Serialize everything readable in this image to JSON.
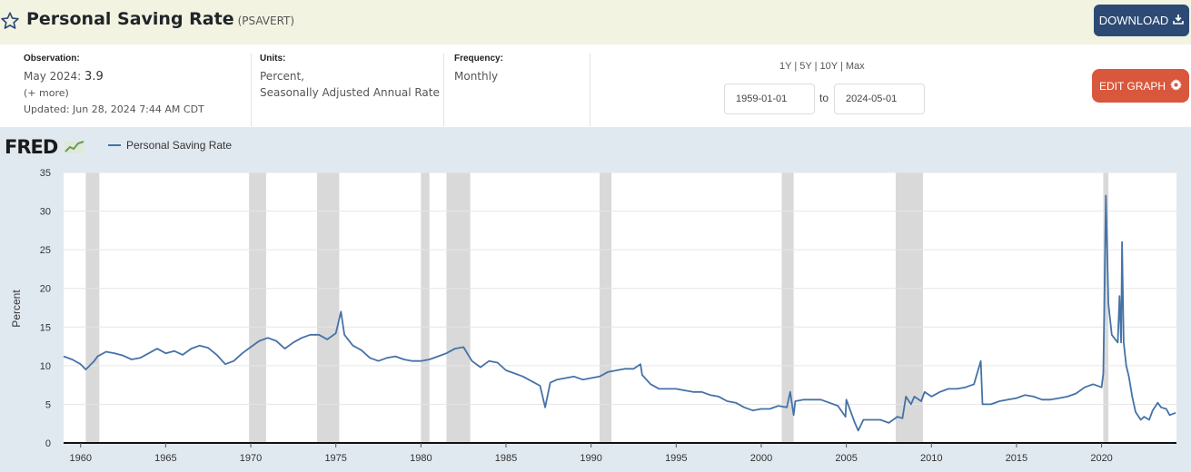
{
  "header": {
    "title": "Personal Saving Rate",
    "series_code": "(PSAVERT)",
    "star_icon": "star-outline-icon",
    "download_label": "DOWNLOAD",
    "download_icon": "download-icon"
  },
  "meta": {
    "observation_label": "Observation:",
    "observation_period": "May 2024:",
    "observation_value": "3.9",
    "more_label": "(+ more)",
    "updated": "Updated: Jun 28, 2024 7:44 AM CDT",
    "units_label": "Units:",
    "units_line1": "Percent,",
    "units_line2": "Seasonally Adjusted Annual Rate",
    "frequency_label": "Frequency:",
    "frequency_value": "Monthly"
  },
  "range": {
    "r1y": "1Y",
    "r5y": "5Y",
    "r10y": "10Y",
    "rmax": "Max",
    "sep": "|",
    "start_date": "1959-01-01",
    "to_label": "to",
    "end_date": "2024-05-01"
  },
  "edit_graph": {
    "label": "EDIT GRAPH",
    "icon": "gear-icon"
  },
  "colors": {
    "line": "#4572a7",
    "recession": "#d9d9d9",
    "plot_bg": "#ffffff",
    "chart_bg": "#e1e9f0"
  },
  "chart_data": {
    "type": "line",
    "logo": "FRED",
    "ylabel": "Percent",
    "xlabel": "",
    "ylim": [
      0,
      35
    ],
    "xlim": [
      1959.0,
      2024.4
    ],
    "yticks": [
      0,
      5,
      10,
      15,
      20,
      25,
      30,
      35
    ],
    "xticks": [
      1960,
      1965,
      1970,
      1975,
      1980,
      1985,
      1990,
      1995,
      2000,
      2005,
      2010,
      2015,
      2020
    ],
    "grid": true,
    "legend_position": "top-left",
    "series": [
      {
        "name": "Personal Saving Rate",
        "x": [
          1959.0,
          1959.5,
          1960.0,
          1960.3,
          1960.8,
          1961.0,
          1961.5,
          1962.0,
          1962.5,
          1963.0,
          1963.5,
          1964.0,
          1964.5,
          1965.0,
          1965.5,
          1966.0,
          1966.5,
          1967.0,
          1967.5,
          1968.0,
          1968.5,
          1969.0,
          1969.5,
          1970.0,
          1970.5,
          1971.0,
          1971.5,
          1972.0,
          1972.5,
          1973.0,
          1973.5,
          1974.0,
          1974.5,
          1975.0,
          1975.3,
          1975.5,
          1976.0,
          1976.5,
          1977.0,
          1977.5,
          1978.0,
          1978.5,
          1979.0,
          1979.5,
          1980.0,
          1980.5,
          1981.0,
          1981.5,
          1982.0,
          1982.5,
          1983.0,
          1983.5,
          1984.0,
          1984.5,
          1985.0,
          1985.5,
          1986.0,
          1986.5,
          1987.0,
          1987.3,
          1987.6,
          1988.0,
          1988.5,
          1989.0,
          1989.5,
          1990.0,
          1990.5,
          1991.0,
          1991.5,
          1992.0,
          1992.5,
          1992.9,
          1993.0,
          1993.5,
          1994.0,
          1994.5,
          1995.0,
          1995.5,
          1996.0,
          1996.5,
          1997.0,
          1997.5,
          1998.0,
          1998.5,
          1999.0,
          1999.5,
          2000.0,
          2000.5,
          2001.0,
          2001.5,
          2001.7,
          2001.9,
          2002.0,
          2002.5,
          2003.0,
          2003.5,
          2004.0,
          2004.5,
          2004.95,
          2005.0,
          2005.5,
          2005.7,
          2006.0,
          2006.5,
          2007.0,
          2007.5,
          2008.0,
          2008.3,
          2008.5,
          2008.8,
          2009.0,
          2009.4,
          2009.6,
          2010.0,
          2010.5,
          2011.0,
          2011.5,
          2012.0,
          2012.5,
          2012.9,
          2013.0,
          2013.5,
          2014.0,
          2014.5,
          2015.0,
          2015.5,
          2016.0,
          2016.5,
          2017.0,
          2017.5,
          2018.0,
          2018.5,
          2019.0,
          2019.5,
          2020.0,
          2020.1,
          2020.25,
          2020.4,
          2020.6,
          2020.8,
          2020.95,
          2021.05,
          2021.15,
          2021.2,
          2021.3,
          2021.45,
          2021.6,
          2021.8,
          2022.0,
          2022.3,
          2022.5,
          2022.8,
          2023.0,
          2023.3,
          2023.5,
          2023.8,
          2024.0,
          2024.35
        ],
        "values": [
          11.2,
          10.8,
          10.2,
          9.5,
          10.6,
          11.2,
          11.8,
          11.6,
          11.3,
          10.8,
          11.0,
          11.6,
          12.2,
          11.6,
          11.9,
          11.4,
          12.2,
          12.6,
          12.3,
          11.4,
          10.2,
          10.6,
          11.6,
          12.4,
          13.2,
          13.6,
          13.2,
          12.2,
          13.0,
          13.6,
          14.0,
          14.0,
          13.4,
          14.2,
          17.0,
          14.0,
          12.6,
          12.0,
          11.0,
          10.6,
          11.0,
          11.2,
          10.8,
          10.6,
          10.6,
          10.8,
          11.2,
          11.6,
          12.2,
          12.4,
          10.6,
          9.8,
          10.6,
          10.4,
          9.4,
          9.0,
          8.6,
          8.0,
          7.4,
          4.6,
          7.8,
          8.2,
          8.4,
          8.6,
          8.2,
          8.4,
          8.6,
          9.2,
          9.4,
          9.6,
          9.6,
          10.2,
          8.8,
          7.6,
          7.0,
          7.0,
          7.0,
          6.8,
          6.6,
          6.6,
          6.2,
          6.0,
          5.4,
          5.2,
          4.6,
          4.2,
          4.4,
          4.4,
          4.8,
          4.6,
          6.6,
          3.6,
          5.4,
          5.6,
          5.6,
          5.6,
          5.2,
          4.8,
          3.4,
          5.6,
          2.6,
          1.6,
          3.0,
          3.0,
          3.0,
          2.6,
          3.4,
          3.2,
          6.0,
          5.0,
          6.0,
          5.4,
          6.6,
          6.0,
          6.6,
          7.0,
          7.0,
          7.2,
          7.6,
          10.6,
          5.0,
          5.0,
          5.4,
          5.6,
          5.8,
          6.2,
          6.0,
          5.6,
          5.6,
          5.8,
          6.0,
          6.4,
          7.2,
          7.6,
          7.2,
          9.0,
          32.0,
          18.0,
          14.0,
          13.4,
          13.0,
          19.0,
          13.0,
          26.0,
          13.0,
          10.0,
          8.6,
          6.0,
          4.0,
          3.0,
          3.4,
          3.0,
          4.2,
          5.2,
          4.6,
          4.4,
          3.6,
          3.9
        ]
      }
    ],
    "recessions": [
      [
        1960.3,
        1961.1
      ],
      [
        1969.9,
        1970.9
      ],
      [
        1973.9,
        1975.2
      ],
      [
        1980.0,
        1980.5
      ],
      [
        1981.5,
        1982.9
      ],
      [
        1990.5,
        1991.2
      ],
      [
        2001.2,
        2001.9
      ],
      [
        2007.9,
        2009.5
      ],
      [
        2020.1,
        2020.4
      ]
    ]
  }
}
